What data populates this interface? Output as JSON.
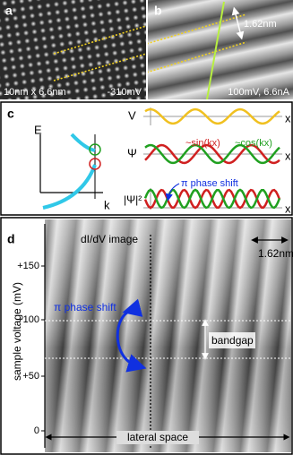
{
  "panels": {
    "a": {
      "label": "a",
      "size": "10nm x 6.6nm",
      "bias": "-310mV"
    },
    "b": {
      "label": "b",
      "period": "1.62nm",
      "setpoint": "100mV, 6.6nA"
    },
    "c": {
      "label": "c",
      "energy_axis": "E",
      "k_axis": "k",
      "potential": "V",
      "psi": "Ψ",
      "psi_squared": "|Ψ|²",
      "sin": "~sin(kx)",
      "cos": "~cos(kx)",
      "phase_shift": "π phase shift",
      "x_axis": "x"
    },
    "d": {
      "label": "d",
      "title": "dI/dV image",
      "period": "1.62nm",
      "y_axis_label": "sample voltage (mV)",
      "y_ticks": [
        "+150",
        "+100",
        "+50",
        "0"
      ],
      "phase_shift": "π phase shift",
      "bandgap": "bandgap",
      "x_axis_label": "lateral space"
    }
  }
}
